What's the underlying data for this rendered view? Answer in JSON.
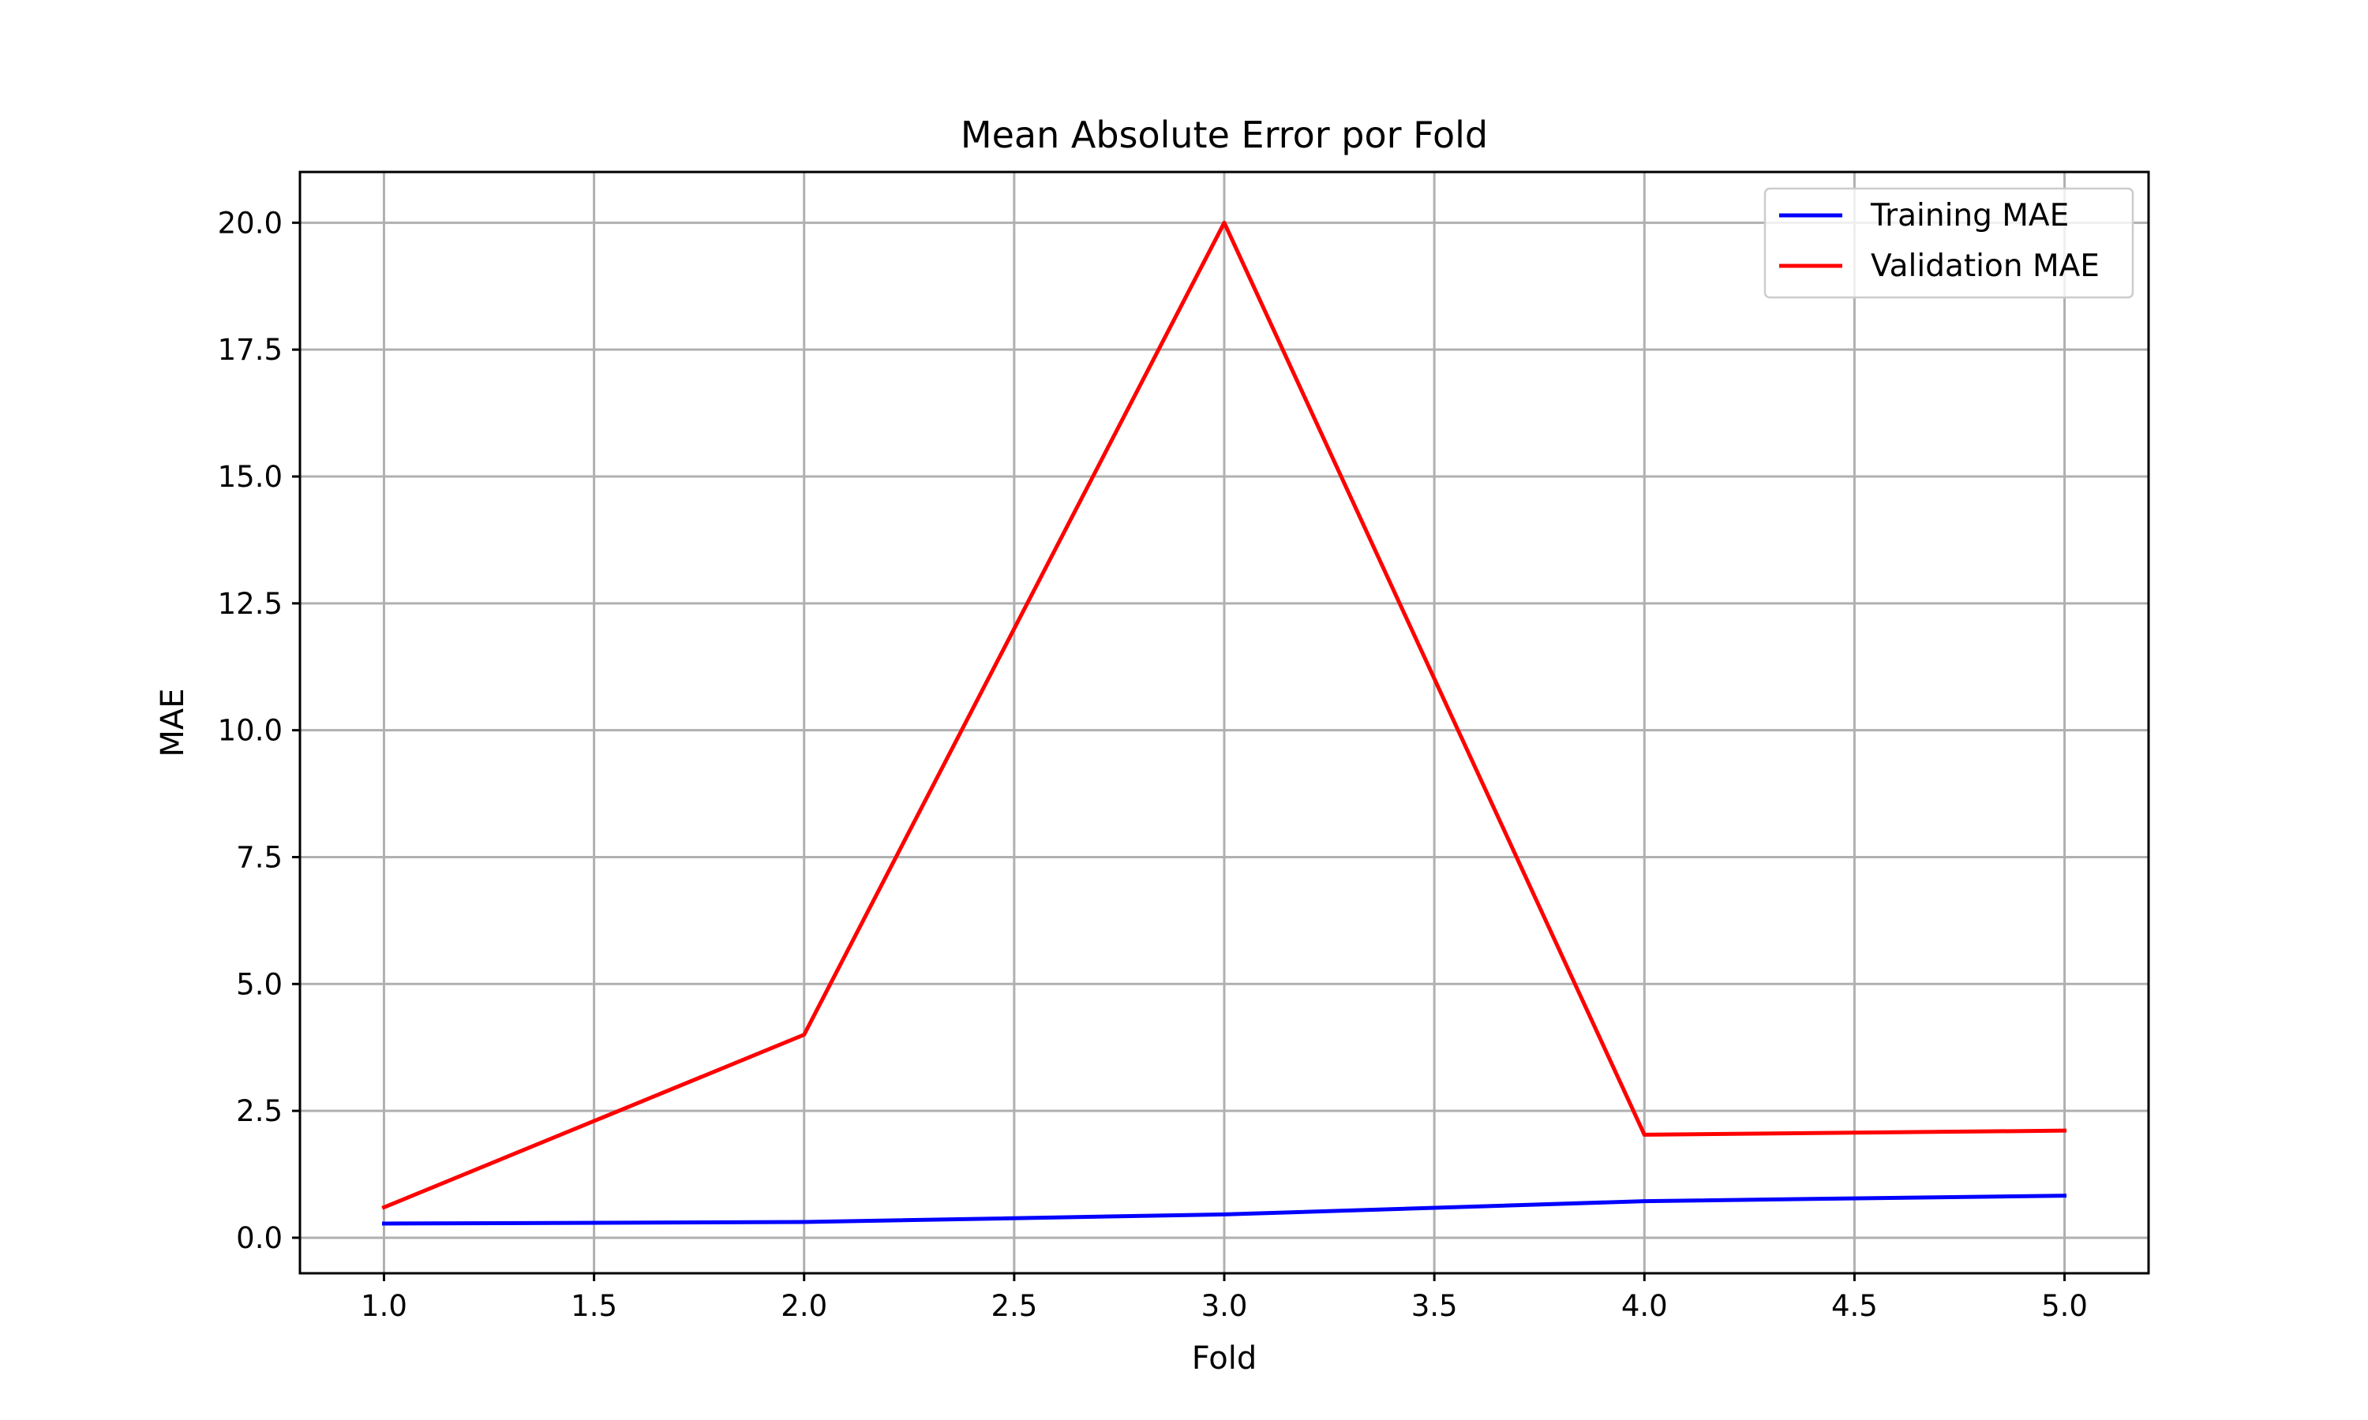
{
  "chart_data": {
    "type": "line",
    "title": "Mean Absolute Error por Fold",
    "xlabel": "Fold",
    "ylabel": "MAE",
    "x": [
      1,
      2,
      3,
      4,
      5
    ],
    "xlim": [
      0.8,
      5.2
    ],
    "ylim": [
      -0.7,
      21.0
    ],
    "xticks": [
      1.0,
      1.5,
      2.0,
      2.5,
      3.0,
      3.5,
      4.0,
      4.5,
      5.0
    ],
    "yticks": [
      0.0,
      2.5,
      5.0,
      7.5,
      10.0,
      12.5,
      15.0,
      17.5,
      20.0
    ],
    "xtick_labels": [
      "1.0",
      "1.5",
      "2.0",
      "2.5",
      "3.0",
      "3.5",
      "4.0",
      "4.5",
      "5.0"
    ],
    "ytick_labels": [
      "0.0",
      "2.5",
      "5.0",
      "7.5",
      "10.0",
      "12.5",
      "15.0",
      "17.5",
      "20.0"
    ],
    "grid": true,
    "legend_position": "top-right",
    "series": [
      {
        "name": "Training MAE",
        "color": "#0000ff",
        "values": [
          0.28,
          0.31,
          0.46,
          0.72,
          0.83
        ]
      },
      {
        "name": "Validation MAE",
        "color": "#ff0000",
        "values": [
          0.6,
          4.0,
          20.0,
          2.03,
          2.11
        ]
      }
    ]
  }
}
